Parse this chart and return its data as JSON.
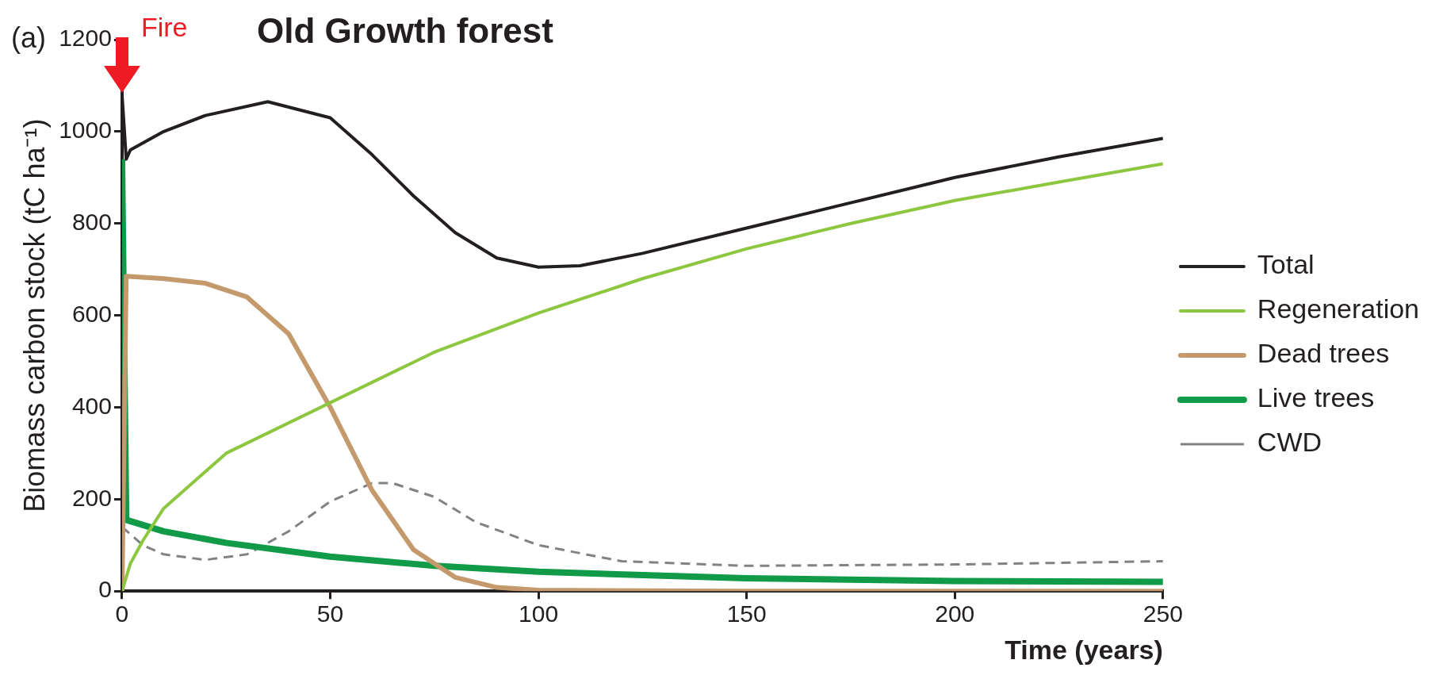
{
  "chart_data": {
    "type": "line",
    "title": "Old Growth forest",
    "xlabel": "Time (years)",
    "ylabel": "Biomass carbon stock (tC ha⁻¹)",
    "annotations": [
      "(a)",
      {
        "text": "Fire",
        "x": 0,
        "y": 1085
      }
    ],
    "xlim": [
      0,
      250
    ],
    "xticks": [
      0,
      50,
      100,
      150,
      200,
      250
    ],
    "ylim": [
      0,
      1200
    ],
    "yticks": [
      0,
      200,
      400,
      600,
      800,
      1000,
      1200
    ],
    "grid": false,
    "legend": "right",
    "marker": "none",
    "series": [
      {
        "name": "Total",
        "color": "#231f20",
        "x": [
          0,
          1,
          2,
          10,
          20,
          35,
          50,
          60,
          70,
          80,
          90,
          100,
          110,
          125,
          150,
          175,
          200,
          225,
          250
        ],
        "values": [
          1080,
          940,
          960,
          1000,
          1035,
          1065,
          1030,
          950,
          860,
          780,
          725,
          705,
          708,
          735,
          790,
          845,
          900,
          945,
          985
        ]
      },
      {
        "name": "Regeneration",
        "color": "#8dc63f",
        "x": [
          0,
          2,
          5,
          10,
          25,
          50,
          75,
          100,
          125,
          150,
          175,
          200,
          225,
          250
        ],
        "values": [
          0,
          60,
          110,
          180,
          300,
          410,
          520,
          605,
          680,
          745,
          800,
          850,
          890,
          930
        ]
      },
      {
        "name": "Dead trees",
        "color": "#c49a6c",
        "x": [
          0,
          1,
          10,
          20,
          30,
          40,
          50,
          60,
          70,
          80,
          90,
          100,
          150,
          250
        ],
        "values": [
          0,
          685,
          680,
          670,
          640,
          560,
          400,
          220,
          90,
          30,
          8,
          2,
          0,
          0
        ]
      },
      {
        "name": "Live trees",
        "color": "#119a48",
        "x": [
          0,
          1,
          10,
          25,
          50,
          75,
          100,
          150,
          200,
          250
        ],
        "values": [
          940,
          155,
          130,
          105,
          75,
          55,
          42,
          28,
          22,
          20
        ]
      },
      {
        "name": "CWD",
        "color": "#808285",
        "line_style": "dashed",
        "x": [
          0,
          5,
          10,
          20,
          30,
          40,
          50,
          60,
          65,
          75,
          85,
          100,
          120,
          150,
          200,
          250
        ],
        "values": [
          140,
          100,
          80,
          68,
          80,
          130,
          195,
          235,
          235,
          205,
          150,
          100,
          65,
          55,
          58,
          65
        ]
      }
    ]
  }
}
